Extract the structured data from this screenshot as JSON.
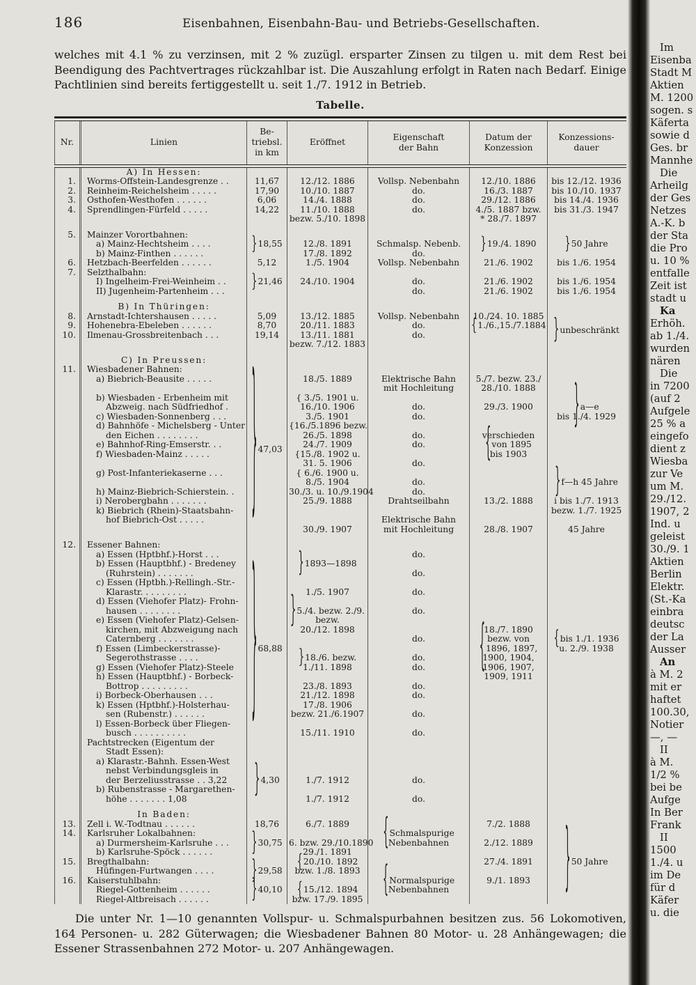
{
  "page": {
    "number": "186",
    "running_title": "Eisenbahnen, Eisenbahn-Bau- und Betriebs-Gesellschaften."
  },
  "intro": "welches mit 4.1 % zu verzinsen, mit 2 % zuzügl. ersparter Zinsen zu tilgen u. mit dem Rest bei Beendigung des Pachtvertrages rückzahlbar ist.  Die Auszahlung erfolgt in Raten nach Bedarf.  Einige Pachtlinien sind bereits fertiggestellt u. seit 1./7. 1912 in Betrieb.",
  "table_title": "Tabelle.",
  "table": {
    "header": [
      [
        "Nr."
      ],
      [
        "Linien"
      ],
      [
        "Be-",
        "triebsl.",
        "in km"
      ],
      [
        "Eröffnet"
      ],
      [
        "Eigenschaft",
        "der Bahn"
      ],
      [
        "Datum der",
        "Konzession"
      ],
      [
        "Konzessions-",
        "dauer"
      ]
    ],
    "bands": [
      {
        "linien": [
          {
            "t": "A) In Hessen:",
            "cls": "sect"
          }
        ]
      },
      {
        "nr": [
          "1."
        ],
        "linien": [
          "Worms-Offstein-Landesgrenze .  ."
        ],
        "km": [
          "11,67"
        ],
        "er": [
          "12./12. 1886"
        ],
        "eig": [
          "Vollsp. Nebenbahn"
        ],
        "dat": [
          "12./10. 1886"
        ],
        "dau": [
          "bis 12./12. 1936"
        ]
      },
      {
        "nr": [
          "2."
        ],
        "linien": [
          "Reinheim-Reichelsheim .  .  .  .  ."
        ],
        "km": [
          "17,90"
        ],
        "er": [
          "10./10. 1887"
        ],
        "eig": [
          "do."
        ],
        "dat": [
          "16./3. 1887"
        ],
        "dau": [
          "bis 10./10. 1937"
        ]
      },
      {
        "nr": [
          "3."
        ],
        "linien": [
          "Osthofen-Westhofen .  .  .  .  .  ."
        ],
        "km": [
          "6,06"
        ],
        "er": [
          "14./4. 1888"
        ],
        "eig": [
          "do."
        ],
        "dat": [
          "29./12. 1886"
        ],
        "dau": [
          "bis 14./4. 1936"
        ]
      },
      {
        "nr": [
          "4."
        ],
        "linien": [
          "Sprendlingen-Fürfeld  .  .  .  .  ."
        ],
        "km": [
          "14,22"
        ],
        "er": [
          "11./10. 1888",
          "bezw. 5./10. 1898"
        ],
        "eig": [
          "do."
        ],
        "dat": [
          "4./5. 1887 bzw.",
          "* 28./7. 1897"
        ],
        "dau": [
          "bis 31./3. 1947"
        ]
      },
      {
        "gap": true,
        "nr": [
          "5."
        ],
        "linien": [
          "Mainzer Vorortbahnen:",
          {
            "t": "a) Mainz-Hechtsheim  .  .  .  .",
            "cls": "sub"
          },
          {
            "t": "b) Mainz-Finthen  .  .  .  .  .  .",
            "cls": "sub"
          }
        ],
        "km": {
          "center": true,
          "lines": [
            {
              "t": "18,55",
              "br": "}",
              "bh": 26
            }
          ]
        },
        "er": [
          "",
          "12./8. 1891",
          "17./8. 1892"
        ],
        "eig": [
          "",
          "Schmalsp. Nebenb.",
          "do."
        ],
        "dat": {
          "center": true,
          "lines": [
            {
              "t": "19./4. 1890",
              "br": "}",
              "bh": 24
            }
          ]
        },
        "dau": {
          "center": true,
          "lines": [
            {
              "t": "50 Jahre",
              "br": "}",
              "bh": 24
            }
          ]
        }
      },
      {
        "nr": [
          "6."
        ],
        "linien": [
          "Hetzbach-Beerfelden .  .  .  .  .  ."
        ],
        "km": [
          "5,12"
        ],
        "er": [
          "1./5. 1904"
        ],
        "eig": [
          "Vollsp. Nebenbahn"
        ],
        "dat": [
          "21./6. 1902"
        ],
        "dau": [
          "bis 1./6. 1954"
        ]
      },
      {
        "nr": [
          "7."
        ],
        "linien": [
          "Selzthalbahn:",
          {
            "t": "I) Ingelheim-Frei-Weinheim  .  .",
            "cls": "sub"
          },
          {
            "t": "II) Jugenheim-Partenheim  .  .  .",
            "cls": "sub"
          }
        ],
        "km": {
          "center": true,
          "lines": [
            {
              "t": "21,46",
              "br": "}",
              "bh": 26
            }
          ]
        },
        "er": [
          "",
          "24./10. 1904"
        ],
        "eig": [
          "",
          "do.",
          "do."
        ],
        "dat": [
          "",
          "21./6. 1902",
          "21./6. 1902"
        ],
        "dau": [
          "",
          "bis 1./6. 1954",
          "bis 1./6. 1954"
        ]
      },
      {
        "gap": true,
        "linien": [
          {
            "t": "B) In Thüringen:",
            "cls": "sect"
          }
        ]
      },
      {
        "nr": [
          "8.",
          "9.",
          "10."
        ],
        "linien": [
          "Arnstadt-Ichtershausen .  .  .  .  .",
          "Hohenebra-Ebeleben .  .  .  .  .  .",
          "Ilmenau-Grossbreitenbach  .  .  ."
        ],
        "km": [
          "5,09",
          "8,70",
          "19,14"
        ],
        "er": [
          "13./12. 1885",
          "20./11. 1883",
          "13./11. 1881",
          "bezw. 7./12. 1883"
        ],
        "eig": [
          "Vollsp. Nebenbahn",
          "do.",
          "do."
        ],
        "dat": [
          "10./24. 10. 1885",
          {
            "t": "1./6.,15./7.1884",
            "br": "{",
            "bh": 24
          }
        ],
        "dau": {
          "center": true,
          "lines": [
            {
              "t": "unbeschränkt",
              "br": "}",
              "bh": 38
            }
          ]
        }
      },
      {
        "gap": true,
        "linien": [
          {
            "t": "C) In Preussen:",
            "cls": "sect"
          }
        ]
      },
      {
        "nr": [
          "11."
        ],
        "linien": [
          "Wiesbadener Bahnen:",
          {
            "t": "a) Biebrich-Beausite .  .  .  .  .",
            "cls": "sub"
          },
          "",
          {
            "t": "b) Wiesbaden - Erbenheim  mit",
            "cls": "sub"
          },
          {
            "t": "Abzweig. nach Südfriedhof .",
            "cls": "cont"
          },
          {
            "t": "c) Wiesbaden-Sonnenberg  .  .  .",
            "cls": "sub"
          },
          {
            "t": "d) Bahnhöfe - Michelsberg - Unter",
            "cls": "sub"
          },
          {
            "t": "den Eichen .  .  .  .  .  .  .  .",
            "cls": "cont"
          },
          {
            "t": "e) Bahnhof-Ring-Emserstr.  .  .",
            "cls": "sub"
          },
          {
            "t": "f) Wiesbaden-Mainz  .  .  .  .  .",
            "cls": "sub"
          },
          "",
          {
            "t": "g) Post-Infanteriekaserne .  .  .",
            "cls": "sub"
          },
          "",
          {
            "t": "h) Mainz-Biebrich-Schierstein.  .",
            "cls": "sub"
          },
          {
            "t": "i) Nerobergbahn .  .  .  .  .  .  .",
            "cls": "sub"
          },
          {
            "t": "k) Biebrich (Rhein)-Staatsbahn-",
            "cls": "sub"
          },
          {
            "t": "hof Biebrich-Ost  .  .  .  .  .",
            "cls": "cont"
          },
          ""
        ],
        "km": {
          "center": true,
          "lines": [
            {
              "t": "47,03",
              "br": "}",
              "bh": 235
            }
          ]
        },
        "er": [
          "",
          "18./5. 1889",
          "",
          "{ 3./5. 1901 u.",
          "16./10. 1906",
          "3./5. 1901",
          "{16./5.1896 bezw.",
          "26./5. 1898",
          "24./7. 1909",
          "{15./8. 1902 u.",
          "31. 5. 1906",
          "{ 6./6. 1900 u.",
          "8./5. 1904",
          "30./3. u. 10./9.1904",
          "25./9. 1888",
          "",
          "",
          "30./9. 1907"
        ],
        "eig": [
          "",
          "Elektrische Bahn",
          "mit Hochleitung",
          "",
          "do.",
          "do.",
          "",
          "do.",
          "do.",
          "",
          "do.",
          "",
          "do.",
          "do.",
          "Drahtseilbahn",
          "",
          "Elektrische Bahn",
          "mit Hochleitung"
        ],
        "dat": [
          "",
          "5./7. bezw. 23./",
          "28./10. 1888",
          "",
          "29./3. 1900",
          "",
          "",
          "verschieden",
          {
            "t": "von 1895",
            "br": "{",
            "bh": 55
          },
          "bis 1903",
          "",
          "",
          "",
          "",
          "13./2. 1888",
          "",
          "",
          "28./8. 1907"
        ],
        "dau": [
          "",
          "",
          "",
          "",
          {
            "t": "a—e",
            "br": "}",
            "bh": 70
          },
          "bis 1./4. 1929",
          "",
          "",
          "",
          "",
          "",
          "",
          {
            "t": "f—h 45 Jahre",
            "br": "}",
            "bh": 48
          },
          "",
          "i bis 1./7. 1913",
          "bezw. 1./7. 1925",
          "",
          "45 Jahre"
        ]
      },
      {
        "gap": true,
        "nr": [
          "12."
        ],
        "linien": [
          "Essener Bahnen:",
          {
            "t": "a) Essen (Hptbhf.)-Horst  .  .  .",
            "cls": "sub"
          },
          {
            "t": "b) Essen (Hauptbhf.) - Bredeney",
            "cls": "sub"
          },
          {
            "t": "(Ruhrstein)  .  .  .  .  .  .  .",
            "cls": "cont"
          },
          {
            "t": "c) Essen (Hptbh.)-Rellingh.-Str.-",
            "cls": "sub"
          },
          {
            "t": "Klarastr.  .  .  .  .  .  .  .  .",
            "cls": "cont"
          },
          {
            "t": "d) Essen (Viehofer Platz)- Frohn-",
            "cls": "sub"
          },
          {
            "t": "hausen  .  .  .  .  .  .  .  .",
            "cls": "cont"
          },
          {
            "t": "e) Essen (Viehofer Platz)-Gelsen-",
            "cls": "sub"
          },
          {
            "t": "kirchen, mit Abzweigung nach",
            "cls": "cont"
          },
          {
            "t": "Caternberg .  .  .  .  .  .  .",
            "cls": "cont"
          },
          {
            "t": "f) Essen (Limbeckerstrasse)-",
            "cls": "sub"
          },
          {
            "t": "Segerothstrasse   .  .  .  .",
            "cls": "cont"
          },
          {
            "t": "g) Essen (Viehofer Platz)-Steele",
            "cls": "sub"
          },
          {
            "t": "h) Essen (Hauptbhf.) - Borbeck-",
            "cls": "sub"
          },
          {
            "t": "Bottrop .  .  .  .  .  .  .  .  .",
            "cls": "cont"
          },
          {
            "t": "i) Borbeck-Oberhausen  .  .  .",
            "cls": "sub"
          },
          {
            "t": "k) Essen (Hptbhf.)-Holsterhau-",
            "cls": "sub"
          },
          {
            "t": "sen (Rubenstr.) .  .  .  .  .  .",
            "cls": "cont"
          },
          {
            "t": "l) Essen-Borbeck über Fliegen-",
            "cls": "sub"
          },
          {
            "t": "busch .  .  .  .  .  .  .  .  .  .",
            "cls": "cont"
          },
          "Pachtstrecken (Eigentum der",
          {
            "t": "Stadt Essen):",
            "cls": "cont"
          },
          {
            "t": "a) Klarastr.-Bahnh. Essen-West",
            "cls": "sub"
          },
          {
            "t": "nebst  Verbindungsgleis  in",
            "cls": "cont"
          },
          {
            "t": "der Berzeliusstrasse .  . 3,22",
            "cls": "cont"
          },
          {
            "t": "b) Rubenstrasse - Margarethen-",
            "cls": "sub"
          },
          {
            "t": "höhe  .  .  .  .  .  .  .  1,08",
            "cls": "cont"
          }
        ],
        "km": [
          "",
          "",
          "",
          "",
          "",
          "",
          "",
          "",
          "",
          "",
          "",
          {
            "t": "68,88",
            "br": "}",
            "bh": 250
          },
          "",
          "",
          "",
          "",
          "",
          "",
          "",
          "",
          "",
          "",
          "",
          "",
          "",
          {
            "t": "4,30",
            "br": "}",
            "bh": 52
          },
          "",
          ""
        ],
        "er": [
          "",
          "",
          {
            "t": "1893—1898",
            "br": "}",
            "bh": 38
          },
          "",
          "",
          "1./5. 1907",
          "",
          {
            "t": "5./4. bezw. 2./9.",
            "br": "}",
            "bh": 50
          },
          "bezw.",
          "20./12. 1898",
          "",
          "",
          {
            "t": "18./6. bezw.",
            "br": "}",
            "bh": 28
          },
          "1./11. 1898",
          "",
          "23./8. 1893",
          "21./12. 1898",
          "17./8. 1906",
          "bezw. 21./6.1907",
          "",
          "15./11. 1910",
          "",
          "",
          "",
          "",
          "1./7. 1912",
          "",
          "1./7. 1912"
        ],
        "eig": [
          "",
          "do.",
          "",
          "do.",
          "",
          "do.",
          "",
          "do.",
          "",
          "",
          "do.",
          "",
          "do.",
          "do.",
          "",
          "do.",
          "do.",
          "",
          "do.",
          "",
          "do.",
          "",
          "",
          "",
          "",
          "do.",
          "",
          "do."
        ],
        "dat": [
          "",
          "",
          "",
          "",
          "",
          "",
          "",
          "",
          "",
          "18./7. 1890",
          "bezw. von",
          {
            "t": "1896, 1897,",
            "br": "{",
            "bh": 78
          },
          "1900, 1904,",
          "1906, 1907,",
          "1909, 1911"
        ],
        "dau": [
          "",
          "",
          "",
          "",
          "",
          "",
          "",
          "",
          "",
          "",
          {
            "t": "bis 1./1. 1936",
            "br": "{",
            "bh": 28
          },
          "u. 2./9. 1938"
        ]
      },
      {
        "gap": true,
        "linien": [
          {
            "t": "In Baden:",
            "cls": "sect"
          }
        ]
      },
      {
        "nr": [
          "13.",
          "14.",
          "",
          "",
          "15.",
          "",
          "16.",
          "",
          ""
        ],
        "linien": [
          "Zell i. W.-Todtnau  .  .  .  .  .  .",
          "Karlsruher Lokalbahnen:",
          {
            "t": "a) Durmersheim-Karlsruhe  .  .  .",
            "cls": "sub"
          },
          {
            "t": "b) Karlsruhe-Spöck .  .  .  .  .  .",
            "cls": "sub"
          },
          "Bregthalbahn:",
          {
            "t": "Hüfingen-Furtwangen   .  .  .  .",
            "cls": "sub"
          },
          "Kaiserstuhlbahn:",
          {
            "t": "Riegel-Gottenheim  .  .  .  .  .  .",
            "cls": "sub"
          },
          {
            "t": "Riegel-Altbreisach  .  .  .  .  .  .",
            "cls": "sub"
          }
        ],
        "km": [
          "18,76",
          "",
          {
            "t": "30,75",
            "br": "}",
            "bh": 36
          },
          "",
          "",
          {
            "t": "29,58",
            "br": "}",
            "bh": 36
          },
          "",
          {
            "t": "40,10",
            "br": "}",
            "bh": 36
          },
          ""
        ],
        "er": [
          "6./7. 1889",
          "",
          "6. bzw. 29./10.1890",
          "29./1. 1891",
          {
            "t": "20./10. 1892",
            "br": "{",
            "bh": 26
          },
          "bzw. 1./8. 1893",
          "",
          {
            "t": "15./12. 1894",
            "br": "{",
            "bh": 26
          },
          "bzw. 17./9. 1895"
        ],
        "eig": [
          "",
          {
            "t": "Schmalspurige",
            "br": "{",
            "bh": 50
          },
          "Nebenbahnen",
          "",
          "",
          "",
          {
            "t": "Normalspurige",
            "br": "{",
            "bh": 50
          },
          "Nebenbahnen",
          ""
        ],
        "dat": [
          "7./2. 1888",
          "",
          "2./12. 1889",
          "",
          "27./4. 1891",
          "",
          "9./1. 1893",
          "",
          ""
        ],
        "dau": {
          "center": true,
          "lines": [
            {
              "t": "50 Jahre",
              "br": "}",
              "bh": 105
            }
          ]
        }
      }
    ]
  },
  "footer": "Die unter Nr. 1—10 genannten Vollspur- u. Schmalspurbahnen besitzen zus. 56 Lokomotiven, 164 Personen- u. 282 Güterwagen; die Wiesbadener Bahnen 80 Motor- u. 28 Anhängewagen; die Essener Strassenbahnen 272 Motor- u. 207 Anhängewagen.",
  "adjacent_page": {
    "lines": [
      {
        "t": "Im",
        "cls": "ind"
      },
      "Eisenba",
      "Stadt M",
      "Aktien",
      "M. 1200",
      "sogen. s",
      "Käferta",
      "sowie d",
      "Ges. br",
      "Mannhe",
      {
        "t": "Die",
        "cls": "ind"
      },
      "Arheilg",
      "der Ges",
      "Netzes",
      "A.-K. b",
      "der Sta",
      "die Pro",
      "u. 10 %",
      "entfalle",
      "Zeit ist",
      "stadt u",
      {
        "t": "Ka",
        "cls": "ind b"
      },
      "Erhöh.",
      "ab 1./4.",
      "wurden",
      "nären",
      {
        "t": "Die",
        "cls": "ind"
      },
      "in 7200",
      "(auf 2",
      "Aufgele",
      "25 % a",
      "eingefo",
      "dient z",
      "Wiesba",
      "zur Ve",
      "um M.",
      "29./12.",
      "1907, 2",
      "Ind. u",
      "geleist",
      "30./9. 1",
      "Aktien",
      "Berlin",
      "Elektr.",
      "(St.-Ka",
      "einbra",
      "deutsc",
      "der La",
      "Ausser",
      {
        "t": "An",
        "cls": "ind b"
      },
      "à M. 2",
      "mit er",
      "haftet",
      "100.30,",
      "Notier",
      "—, —",
      {
        "t": "II",
        "cls": "ind"
      },
      "à M.",
      "1/2 %",
      "bei be",
      "Aufge",
      "In Ber",
      "Frank",
      {
        "t": "II",
        "cls": "ind"
      },
      "1500",
      "1./4. u",
      "im De",
      "für d",
      "Käfer",
      "u. die"
    ]
  },
  "colors": {
    "paper": "#e3e1dc",
    "ink": "#1d1b17",
    "rule": "#5a564e",
    "gutter": "#0d0c0a"
  }
}
